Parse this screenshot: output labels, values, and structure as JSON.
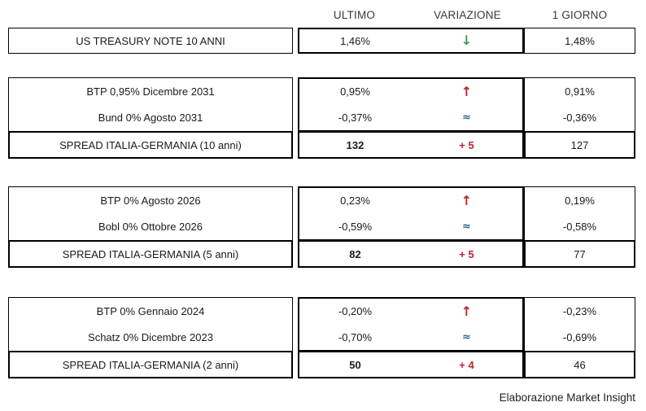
{
  "header": {
    "ultimo": "ULTIMO",
    "variazione": "VARIAZIONE",
    "giorno": "1 GIORNO"
  },
  "icons": {
    "up": "↑",
    "down": "↓",
    "approx": "≈"
  },
  "colors": {
    "up": "#c0222c",
    "down": "#2e9e58",
    "approx": "#1e6a8e",
    "spread_change": "#c0222c",
    "border": "#000000"
  },
  "sections": [
    {
      "rows": [
        {
          "label": "US TREASURY NOTE 10 ANNI",
          "ultimo": "1,46%",
          "direction": "down",
          "giorno": "1,48%"
        }
      ]
    },
    {
      "rows": [
        {
          "label": "BTP 0,95% Dicembre 2031",
          "ultimo": "0,95%",
          "direction": "up",
          "giorno": "0,91%"
        },
        {
          "label": "Bund 0% Agosto 2031",
          "ultimo": "-0,37%",
          "direction": "approx",
          "giorno": "-0,36%"
        }
      ],
      "spread": {
        "label": "SPREAD ITALIA-GERMANIA (10 anni)",
        "ultimo": "132",
        "variazione": "+ 5",
        "giorno": "127"
      }
    },
    {
      "rows": [
        {
          "label": "BTP 0% Agosto 2026",
          "ultimo": "0,23%",
          "direction": "up",
          "giorno": "0,19%"
        },
        {
          "label": "Bobl 0% Ottobre 2026",
          "ultimo": "-0,59%",
          "direction": "approx",
          "giorno": "-0,58%"
        }
      ],
      "spread": {
        "label": "SPREAD ITALIA-GERMANIA (5 anni)",
        "ultimo": "82",
        "variazione": "+ 5",
        "giorno": "77"
      }
    },
    {
      "rows": [
        {
          "label": "BTP 0% Gennaio 2024",
          "ultimo": "-0,20%",
          "direction": "up",
          "giorno": "-0,23%"
        },
        {
          "label": "Schatz 0% Dicembre 2023",
          "ultimo": "-0,70%",
          "direction": "approx",
          "giorno": "-0,69%"
        }
      ],
      "spread": {
        "label": "SPREAD ITALIA-GERMANIA (2 anni)",
        "ultimo": "50",
        "variazione": "+ 4",
        "giorno": "46"
      }
    }
  ],
  "footer": "Elaborazione Market Insight",
  "chart_data": {
    "type": "table",
    "columns": [
      "",
      "ULTIMO",
      "VARIAZIONE",
      "1 GIORNO"
    ],
    "rows": [
      [
        "US TREASURY NOTE 10 ANNI",
        "1,46%",
        "↓",
        "1,48%"
      ],
      [
        "BTP 0,95% Dicembre 2031",
        "0,95%",
        "↑",
        "0,91%"
      ],
      [
        "Bund 0% Agosto 2031",
        "-0,37%",
        "≈",
        "-0,36%"
      ],
      [
        "SPREAD ITALIA-GERMANIA (10 anni)",
        "132",
        "+ 5",
        "127"
      ],
      [
        "BTP 0% Agosto 2026",
        "0,23%",
        "↑",
        "0,19%"
      ],
      [
        "Bobl 0% Ottobre 2026",
        "-0,59%",
        "≈",
        "-0,58%"
      ],
      [
        "SPREAD ITALIA-GERMANIA (5 anni)",
        "82",
        "+ 5",
        "77"
      ],
      [
        "BTP 0% Gennaio 2024",
        "-0,20%",
        "↑",
        "-0,23%"
      ],
      [
        "Schatz 0% Dicembre 2023",
        "-0,70%",
        "≈",
        "-0,69%"
      ],
      [
        "SPREAD ITALIA-GERMANIA (2 anni)",
        "50",
        "+ 4",
        "46"
      ]
    ],
    "source_note": "Elaborazione Market Insight"
  }
}
